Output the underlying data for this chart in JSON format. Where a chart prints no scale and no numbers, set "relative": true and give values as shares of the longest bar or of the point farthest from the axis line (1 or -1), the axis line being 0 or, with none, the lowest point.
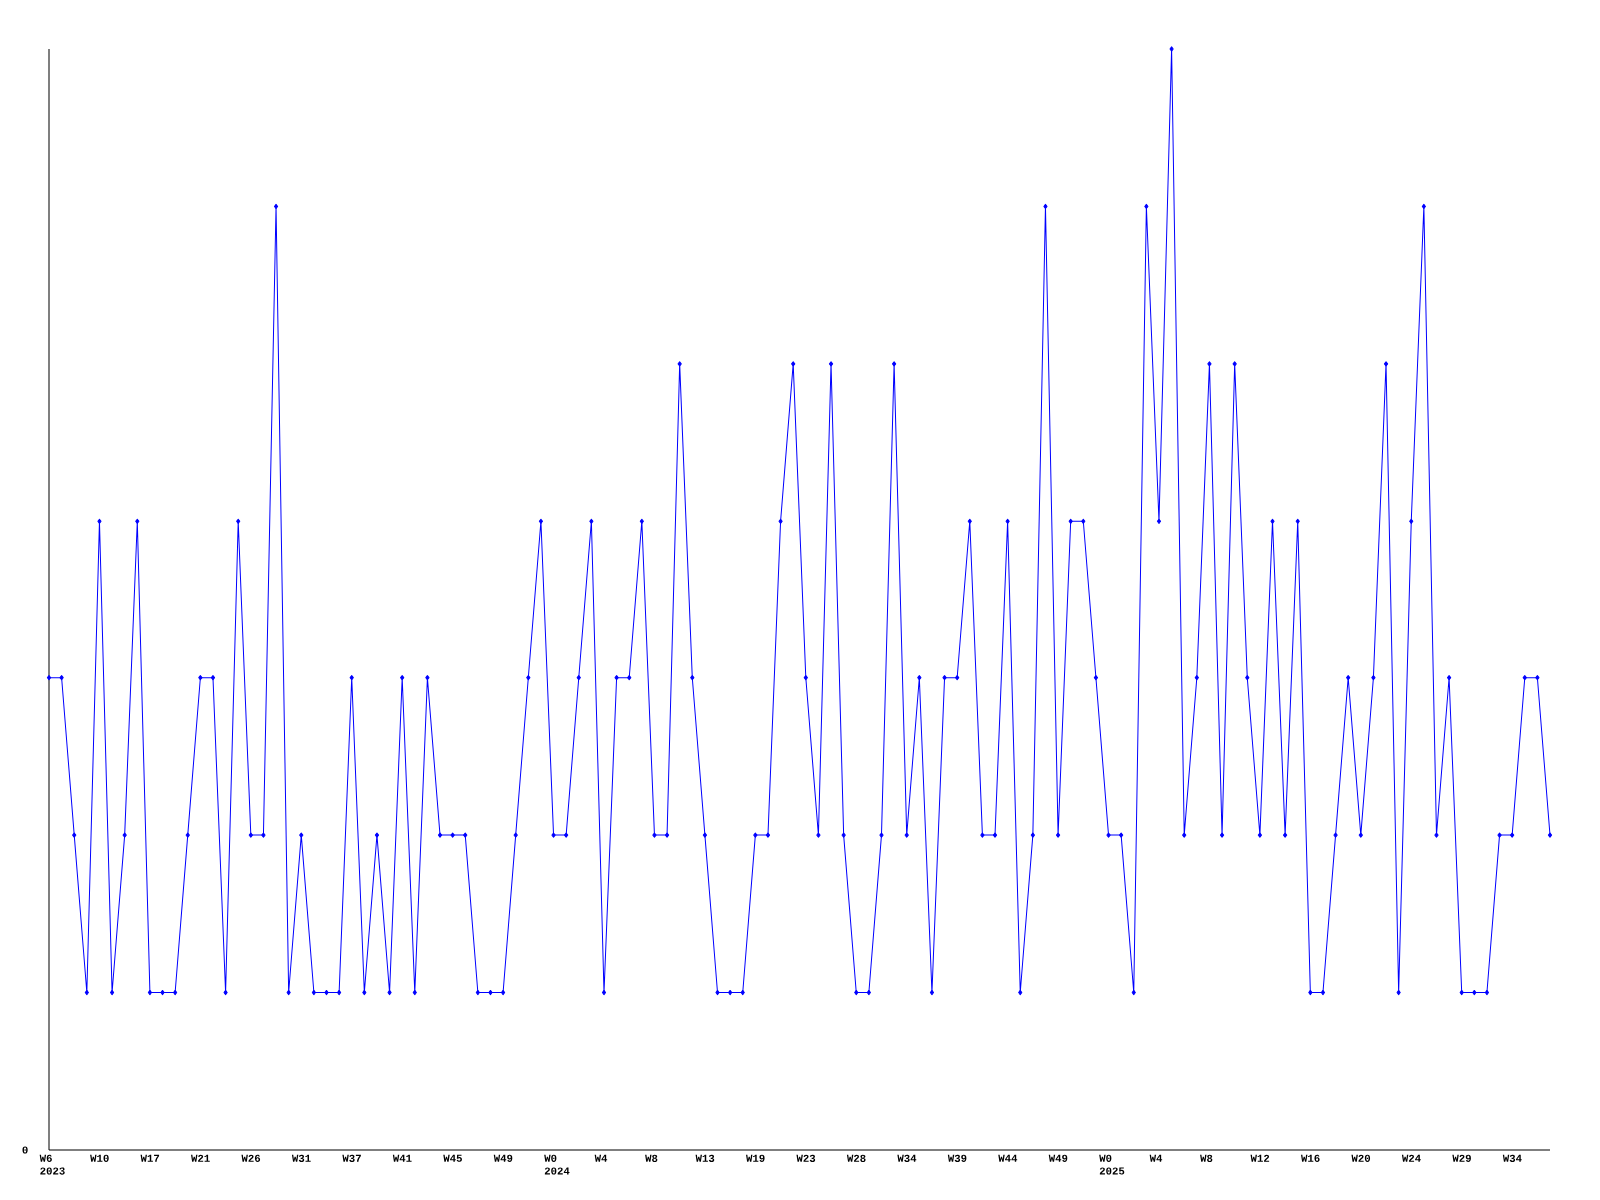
{
  "chart_data": {
    "type": "line",
    "relative": true,
    "color": "#0000ff",
    "marker": "diamond",
    "line_style": "solid",
    "annotations": [
      "0"
    ],
    "categories": [
      "W6 2023",
      null,
      null,
      null,
      "W10",
      null,
      null,
      null,
      "W17",
      null,
      null,
      null,
      "W21",
      null,
      null,
      null,
      "W26",
      null,
      null,
      null,
      "W31",
      null,
      null,
      null,
      "W37",
      null,
      null,
      null,
      "W41",
      null,
      null,
      null,
      "W45",
      null,
      null,
      null,
      "W49",
      null,
      null,
      null,
      "W0 2024",
      null,
      null,
      null,
      "W4",
      null,
      null,
      null,
      "W8",
      null,
      null,
      null,
      "W13",
      null,
      null,
      null,
      "W19",
      null,
      null,
      null,
      "W23",
      null,
      null,
      null,
      "W28",
      null,
      null,
      null,
      "W34",
      null,
      null,
      null,
      "W39",
      null,
      null,
      null,
      "W44",
      null,
      null,
      null,
      "W49",
      null,
      null,
      null,
      "W0 2025",
      null,
      null,
      null,
      "W4",
      null,
      null,
      null,
      "W8",
      null,
      null,
      null,
      "W12",
      null,
      null,
      null,
      "W16",
      null,
      null,
      null,
      "W20",
      null,
      null,
      null,
      "W24",
      null,
      null,
      null,
      "W29",
      null,
      null,
      null,
      "W34",
      null,
      null,
      null
    ],
    "values": [
      0.429,
      0.429,
      0.286,
      0.143,
      0.571,
      0.143,
      0.286,
      0.571,
      0.143,
      0.143,
      0.143,
      0.286,
      0.429,
      0.429,
      0.143,
      0.571,
      0.286,
      0.286,
      0.857,
      0.143,
      0.286,
      0.143,
      0.143,
      0.143,
      0.429,
      0.143,
      0.286,
      0.143,
      0.429,
      0.143,
      0.429,
      0.286,
      0.286,
      0.286,
      0.143,
      0.143,
      0.143,
      0.286,
      0.429,
      0.571,
      0.286,
      0.286,
      0.429,
      0.571,
      0.143,
      0.429,
      0.429,
      0.571,
      0.286,
      0.286,
      0.714,
      0.429,
      0.286,
      0.143,
      0.143,
      0.143,
      0.286,
      0.286,
      0.571,
      0.714,
      0.429,
      0.286,
      0.714,
      0.286,
      0.143,
      0.143,
      0.286,
      0.714,
      0.286,
      0.429,
      0.143,
      0.429,
      0.429,
      0.571,
      0.286,
      0.286,
      0.571,
      0.143,
      0.286,
      0.857,
      0.286,
      0.571,
      0.571,
      0.429,
      0.286,
      0.286,
      0.143,
      0.857,
      0.571,
      1,
      0.286,
      0.429,
      0.714,
      0.286,
      0.714,
      0.429,
      0.286,
      0.571,
      0.286,
      0.571,
      0.143,
      0.143,
      0.286,
      0.429,
      0.286,
      0.429,
      0.714,
      0.143,
      0.571,
      0.857,
      0.286,
      0.429,
      0.143,
      0.143,
      0.143,
      0.286,
      0.286,
      0.429,
      0.429,
      0.286
    ]
  }
}
